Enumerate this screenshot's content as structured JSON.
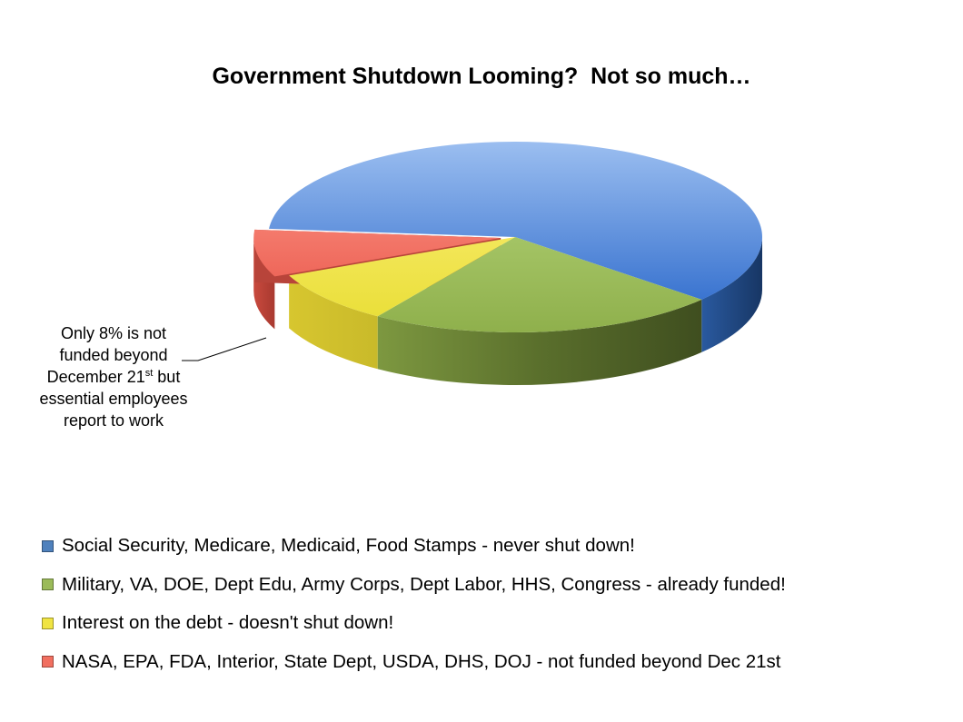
{
  "chart_data": {
    "type": "pie",
    "style": "3d",
    "title": "Government Shutdown Looming?  Not so much…",
    "slices": [
      {
        "label": "Social Security, Medicare, Medicaid, Food Stamps - never shut down!",
        "value": 60,
        "color": "#4f81bd"
      },
      {
        "label": "Military, VA, DOE, Dept Edu, Army Corps, Dept Labor, HHS, Congress - already funded!",
        "value": 23,
        "color": "#9bbb59"
      },
      {
        "label": "Interest on the debt - doesn't shut down!",
        "value": 9,
        "color": "#f0e442"
      },
      {
        "label": "NASA, EPA, FDA, Interior, State Dept, USDA, DHS, DOJ - not funded beyond Dec 21st",
        "value": 8,
        "color": "#f16f60"
      }
    ],
    "legend_position": "bottom",
    "annotation": {
      "line1": "Only 8% is not",
      "line2": "funded beyond",
      "line3_pre": "December 21",
      "line3_sup": "st",
      "line3_post": " but",
      "line4": "essential employees",
      "line5": "report to work"
    }
  }
}
